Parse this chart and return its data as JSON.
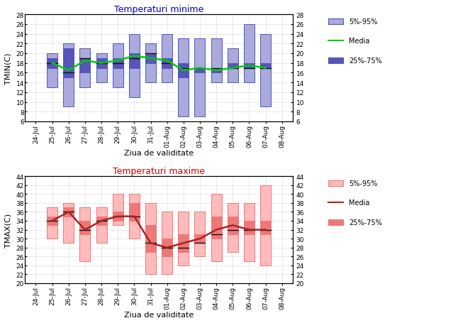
{
  "x_labels": [
    "24-Jul",
    "25-Jul",
    "26-Jul",
    "27-Jul",
    "28-Jul",
    "29-Jul",
    "30-Jul",
    "31-Jul",
    "01-Aug",
    "02-Aug",
    "03-Aug",
    "04-Aug",
    "05-Aug",
    "06-Aug",
    "07-Aug",
    "08-Aug"
  ],
  "tmin": {
    "title": "Temperaturi minime",
    "ylabel": "TMIN(C)",
    "xlabel": "Ziua de validitate",
    "ylim": [
      6,
      28
    ],
    "yticks": [
      6,
      8,
      10,
      12,
      14,
      16,
      18,
      20,
      22,
      24,
      26,
      28
    ],
    "p5": [
      null,
      13,
      9,
      13,
      14,
      13,
      11,
      14,
      14,
      7,
      7,
      14,
      14,
      14,
      9,
      null
    ],
    "p25": [
      null,
      17,
      15,
      16,
      17,
      17,
      17,
      18,
      17,
      15,
      16,
      16,
      17,
      17,
      17,
      null
    ],
    "p50": [
      null,
      18,
      16,
      19,
      18,
      18,
      19,
      20,
      18,
      17,
      17,
      17,
      17,
      17,
      17,
      null
    ],
    "p75": [
      null,
      19,
      21,
      19,
      19,
      19,
      20,
      20,
      19,
      18,
      17,
      17,
      18,
      18,
      18,
      null
    ],
    "p95": [
      null,
      20,
      22,
      21,
      20,
      22,
      24,
      22,
      24,
      23,
      23,
      23,
      21,
      26,
      24,
      null
    ],
    "mean": [
      null,
      18,
      16.5,
      18.5,
      18,
      18.5,
      19.5,
      19,
      18.5,
      16.5,
      17,
      16.5,
      17,
      17.5,
      17,
      null
    ],
    "color_outer": "#aaaadd",
    "color_inner": "#5555bb",
    "color_median": "#111111",
    "color_mean": "#00cc00",
    "title_color": "#0000cc"
  },
  "tmax": {
    "title": "Temperaturi maxime",
    "ylabel": "TMAX(C)",
    "xlabel": "Ziua de validitate",
    "ylim": [
      20,
      44
    ],
    "yticks": [
      20,
      22,
      24,
      26,
      28,
      30,
      32,
      34,
      36,
      38,
      40,
      42,
      44
    ],
    "p5": [
      null,
      30,
      29,
      25,
      29,
      33,
      30,
      22,
      22,
      24,
      26,
      25,
      27,
      25,
      24,
      null
    ],
    "p25": [
      null,
      33,
      35,
      31,
      33,
      34,
      34,
      27,
      26,
      27,
      29,
      30,
      31,
      31,
      31,
      null
    ],
    "p50": [
      null,
      34,
      36,
      32,
      34,
      35,
      35,
      29,
      28,
      28,
      29,
      31,
      32,
      32,
      32,
      null
    ],
    "p75": [
      null,
      35,
      37,
      34,
      35,
      36,
      38,
      33,
      30,
      31,
      31,
      35,
      35,
      34,
      34,
      null
    ],
    "p95": [
      null,
      37,
      38,
      37,
      37,
      40,
      40,
      38,
      36,
      36,
      36,
      40,
      38,
      38,
      42,
      null
    ],
    "mean": [
      null,
      34,
      36,
      32,
      34,
      35,
      35,
      29,
      28,
      29,
      30,
      32,
      33,
      32,
      32,
      null
    ],
    "color_outer": "#ffbbbb",
    "color_inner": "#ee7777",
    "color_median": "#111111",
    "color_mean": "#aa2222",
    "title_color": "#cc0000"
  },
  "figsize": [
    6.7,
    4.56
  ],
  "dpi": 100
}
